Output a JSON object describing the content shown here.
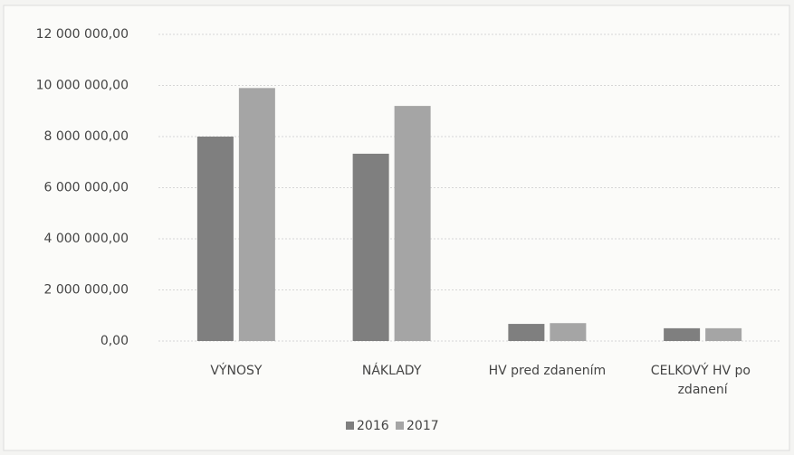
{
  "chart_data": {
    "type": "bar",
    "categories": [
      "VÝNOSY",
      "NÁKLADY",
      "HV pred zdanením",
      "CELKOVÝ HV po zdanení"
    ],
    "series": [
      {
        "name": "2016",
        "color": "#7f7f7f",
        "values": [
          8000000,
          7330000,
          670000,
          500000
        ]
      },
      {
        "name": "2017",
        "color": "#a5a5a5",
        "values": [
          9900000,
          9200000,
          700000,
          500000
        ]
      }
    ],
    "ylim": [
      0,
      12000000
    ],
    "yticks": [
      {
        "value": 0,
        "label": "0,00"
      },
      {
        "value": 2000000,
        "label": "2 000 000,00"
      },
      {
        "value": 4000000,
        "label": "4 000 000,00"
      },
      {
        "value": 6000000,
        "label": "6 000 000,00"
      },
      {
        "value": 8000000,
        "label": "8 000 000,00"
      },
      {
        "value": 10000000,
        "label": "10 000 000,00"
      },
      {
        "value": 12000000,
        "label": "12 000 000,00"
      }
    ],
    "grid": true,
    "legend": "bottom"
  }
}
